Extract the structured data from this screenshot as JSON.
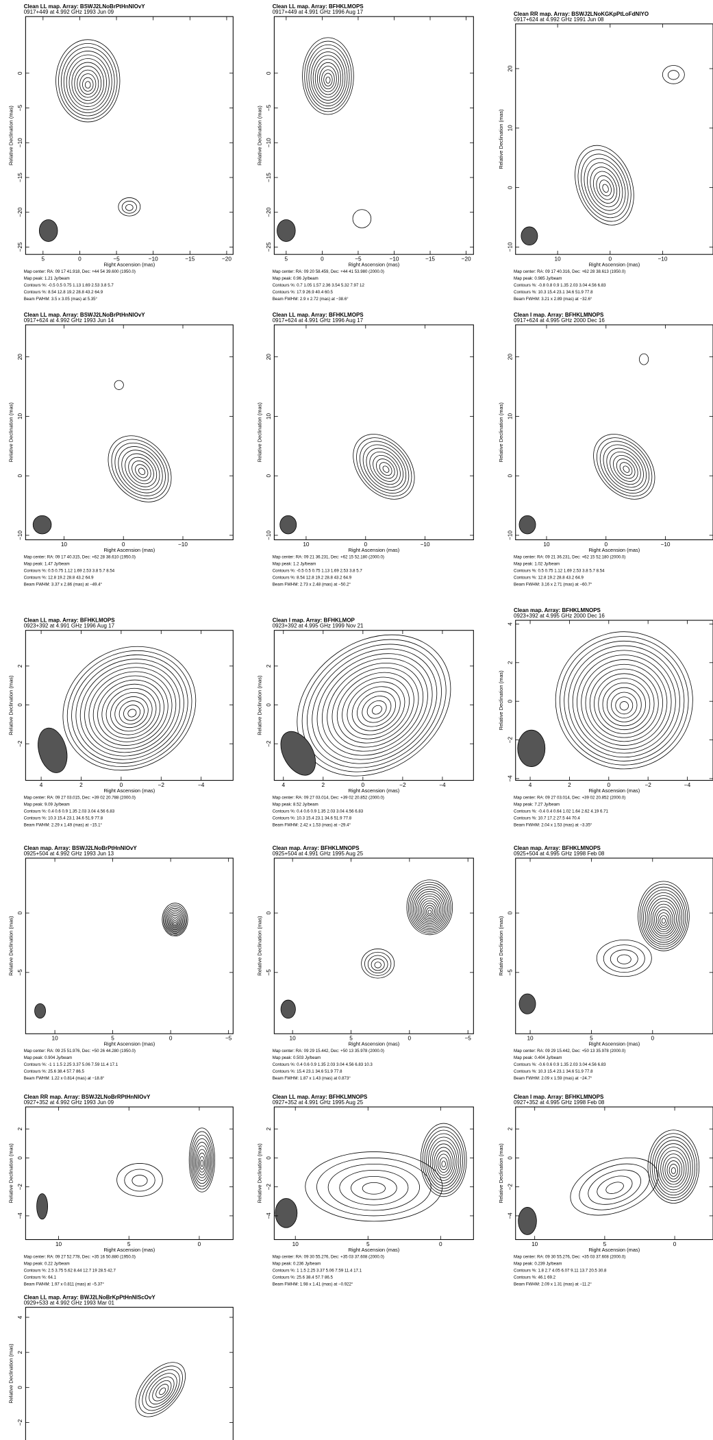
{
  "axis_labels": {
    "x": "Right Ascension  (mas)",
    "y": "Relative Declination  (mas)"
  },
  "panels": [
    {
      "title": "Clean LL map.  Array:  BSWJ2LNoBrPtHnNlOvY",
      "subtitle": "0917+449 at 4.992 GHz 1993 Jun 09",
      "xticks": [
        "5",
        "0",
        "−5",
        "−10",
        "−15",
        "−20"
      ],
      "yticks": [
        "0",
        "−5",
        "−10",
        "−15",
        "−20",
        "−25"
      ],
      "footer": [
        "Map center:  RA: 09 17 41.918,  Dec: +44 54 39.600 (1950.0)",
        "Map peak: 1.21 Jy/beam",
        "Contours %: -0.5 0.5 0.75 1.13 1.69 2.53 3.8 5.7",
        "Contours %: 8.54 12.8 19.2 28.8 43.2 64.9",
        "Beam FWHM: 3.5 x 3.05 (mas) at 5.35°"
      ]
    },
    {
      "title": "Clean LL map.  Array:  BFHKLMOPS",
      "subtitle": "0917+449 at 4.991 GHz 1996 Aug 17",
      "xticks": [
        "5",
        "0",
        "−5",
        "−10",
        "−15",
        "−20"
      ],
      "yticks": [
        "0",
        "−5",
        "−10",
        "−15",
        "−20",
        "−25"
      ],
      "footer": [
        "Map center:  RA: 09 20 58.459,  Dec: +44 41 53.980 (2000.0)",
        "Map peak: 0.96 Jy/beam",
        "Contours %: 0.7 1.05 1.57 2.36 3.54 5.32 7.97 12",
        "Contours %: 17.9 26.9 40.4 60.5",
        "Beam FWHM: 2.9 x 2.72 (mas) at −38.6°"
      ]
    },
    {
      "title": "Clean RR map.  Array:  BSWJ2LNoKGKpPtLoFdNlYO",
      "subtitle": "0917+624 at 4.992 GHz 1991 Jun 08",
      "xticks": [
        "10",
        "0",
        "−10"
      ],
      "yticks": [
        "20",
        "10",
        "0",
        "−10"
      ],
      "footer": [
        "Map center:  RA: 09 17 40.316,  Dec: +62 28 38.613 (1950.0)",
        "Map peak: 0.985 Jy/beam",
        "Contours %: -0.8 0.8 0.9 1.35 2.03 3.04 4.56 6.83",
        "Contours %: 10.3 15.4 23.1 34.6 51.9 77.8",
        "Beam FWHM: 3.21 x 2.89 (mas) at −32.6°"
      ]
    },
    {
      "title": "Clean LL map.  Array:  BSWJ2LNoBrPtHnNlOvY",
      "subtitle": "0917+624 at 4.992 GHz 1993 Jun 14",
      "xticks": [
        "10",
        "0",
        "−10"
      ],
      "yticks": [
        "20",
        "10",
        "0",
        "−10"
      ],
      "footer": [
        "Map center:  RA: 09 17 40.315,  Dec: +62 28 38.610 (1950.0)",
        "Map peak: 1.47 Jy/beam",
        "Contours %: 0.5 0.75 1.12 1.69 2.53 3.8 5.7 8.54",
        "Contours %: 12.8 19.2 28.8 43.2 64.9",
        "Beam FWHM: 3.37 x 2.86 (mas) at −49.4°"
      ]
    },
    {
      "title": "Clean LL map.  Array:  BFHKLMOPS",
      "subtitle": "0917+624 at 4.991 GHz 1996 Aug 17",
      "xticks": [
        "10",
        "0",
        "−10"
      ],
      "yticks": [
        "20",
        "10",
        "0",
        "−10"
      ],
      "footer": [
        "Map center:  RA: 09 21 36.231,  Dec: +62 15 52.180 (2000.0)",
        "Map peak: 1.2 Jy/beam",
        "Contours %: -0.5 0.5 0.75 1.13 1.69 2.53 3.8 5.7",
        "Contours %: 8.54 12.8 19.2 28.8 43.2 64.9",
        "Beam FWHM: 2.73 x 2.48 (mas) at −50.2°"
      ]
    },
    {
      "title": "Clean I map.  Array:  BFHKLMNOPS",
      "subtitle": "0917+624 at 4.995 GHz 2000 Dec 16",
      "xticks": [
        "10",
        "0",
        "−10"
      ],
      "yticks": [
        "20",
        "10",
        "0",
        "−10"
      ],
      "footer": [
        "Map center:  RA: 09 21 36.231,  Dec: +62 15 52.180 (2000.0)",
        "Map peak: 1.02 Jy/beam",
        "Contours %: 0.5 0.75 1.12 1.69 2.53 3.8 5.7 8.54",
        "Contours %: 12.8 19.2 28.8 43.2 64.9",
        "Beam FWHM: 3.16 x 2.71 (mas) at −60.7°"
      ]
    },
    {
      "title": "Clean LL map.  Array:  BFHKLMOPS",
      "subtitle": "0923+392 at 4.991 GHz 1996 Aug 17",
      "xticks": [
        "4",
        "2",
        "0",
        "−2",
        "−4"
      ],
      "yticks": [
        "2",
        "0",
        "−2"
      ],
      "footer": [
        "Map center:  RA: 09 27 03.015,  Dec: +39 02 20.788 (2000.0)",
        "Map peak: 9.09 Jy/beam",
        "Contours %: 0.4 0.6 0.9 1.35 2.03 3.04 4.56 6.83",
        "Contours %: 10.3 15.4 23.1 34.6 51.9 77.8",
        "Beam FWHM: 2.29 x 1.49 (mas) at −15.1°"
      ]
    },
    {
      "title": "Clean I map.  Array:  BFHKLMOP",
      "subtitle": "0923+392 at 4.995 GHz 1999 Nov 21",
      "xticks": [
        "4",
        "2",
        "0",
        "−2",
        "−4"
      ],
      "yticks": [
        "2",
        "0",
        "−2"
      ],
      "footer": [
        "Map center:  RA: 09 27 03.014,  Dec: +39 02 20.852 (2000.0)",
        "Map peak: 8.52 Jy/beam",
        "Contours %: 0.4 0.6 0.9 1.35 2.03 3.04 4.56 6.83",
        "Contours %: 10.3 15.4 23.1 34.6 51.9 77.8",
        "Beam FWHM: 2.42 x 1.53 (mas) at −29.4°"
      ]
    },
    {
      "title": "Clean map.  Array:  BFHKLMNOPS",
      "subtitle": "0923+392 at 4.995 GHz 2000 Dec 16",
      "xticks": [
        "4",
        "2",
        "0",
        "−2",
        "−4"
      ],
      "yticks": [
        "4",
        "2",
        "0",
        "−2",
        "−4"
      ],
      "footer": [
        "Map center:  RA: 09 27 03.014,  Dec: +39 02 20.852 (2000.0)",
        "Map peak: 7.27 Jy/beam",
        "Contours %: -0.4 0.4 0.64 1.02 1.64 2.62 4.19 6.71",
        "Contours %: 10.7 17.2 27.5 44 70.4",
        "Beam FWHM: 2.04 x 1.53 (mas) at −3.35°"
      ]
    },
    {
      "title": "Clean map.  Array:  BSWJ2LNoBrPtHnNlOvY",
      "subtitle": "0925+504 at 4.992 GHz 1993 Jun 13",
      "xticks": [
        "10",
        "5",
        "0",
        "−5"
      ],
      "yticks": [
        "0",
        "−5"
      ],
      "footer": [
        "Map center:  RA: 09 25 51.976,  Dec: +50 26 44.280 (1950.0)",
        "Map peak: 0.904 Jy/beam",
        "Contours %: -1 1 1.5 2.25 3.37 5.06 7.59 11.4 17.1",
        "Contours %: 25.6 38.4 57.7 86.5",
        "Beam FWHM: 1.22 x 0.814 (mas) at −18.8°"
      ]
    },
    {
      "title": "Clean map.  Array:  BFHKLMNOPS",
      "subtitle": "0925+504 at 4.991 GHz 1995 Aug 25",
      "xticks": [
        "10",
        "5",
        "0",
        "−5"
      ],
      "yticks": [
        "0",
        "−5"
      ],
      "footer": [
        "Map center:  RA: 09 29 15.442,  Dec: +50 13 35.978 (2000.0)",
        "Map peak: 0.503 Jy/beam",
        "Contours %: 0.4 0.6 0.9 1.35 2.03 3.04 4.56 6.83 10.3",
        "Contours %: 15.4 23.1 34.6 51.9 77.8",
        "Beam FWHM: 1.87 x 1.43 (mas) at 0.873°"
      ]
    },
    {
      "title": "Clean map.  Array:  BFHKLMNOPS",
      "subtitle": "0925+504 at 4.995 GHz 1998 Feb 08",
      "xticks": [
        "10",
        "5",
        "0"
      ],
      "yticks": [
        "0",
        "−5"
      ],
      "footer": [
        "Map center:  RA: 09 29 15.442,  Dec: +50 13 35.978 (2000.0)",
        "Map peak: 0.404 Jy/beam",
        "Contours %: -0.6 0.6 0.9 1.35 2.03 3.04 4.56 6.83",
        "Contours %: 10.3 15.4 23.1 34.6 51.9 77.8",
        "Beam FWHM: 2.09 x 1.59 (mas) at −24.7°"
      ]
    },
    {
      "title": "Clean RR map.  Array:  BSWJ2LNoBrRPtHnNlOvY",
      "subtitle": "0927+352 at 4.992 GHz 1993 Jun 09",
      "xticks": [
        "10",
        "5",
        "0"
      ],
      "yticks": [
        "2",
        "0",
        "−2",
        "−4"
      ],
      "footer": [
        "Map center:  RA: 09 27 52.778,  Dec: +35 16 50.880 (1950.0)",
        "Map peak: 0.22 Jy/beam",
        "Contours %: 2.5 3.75 5.62 8.44 12.7 19 28.5 42.7",
        "Contours %: 64.1",
        "Beam FWHM: 1.97 x 0.811 (mas) at −5.37°"
      ]
    },
    {
      "title": "Clean LL map.  Array:  BFHKLMNOPS",
      "subtitle": "0927+352 at 4.991 GHz 1995 Aug 25",
      "xticks": [
        "10",
        "5",
        "0"
      ],
      "yticks": [
        "2",
        "0",
        "−2",
        "−4"
      ],
      "footer": [
        "Map center:  RA: 09 30 55.276,  Dec: +35 03 37.608 (2000.0)",
        "Map peak: 0.236 Jy/beam",
        "Contours %: 1 1.5 2.25 3.37 5.06 7.59 11.4 17.1",
        "Contours %: 25.6 38.4 57.7 86.5",
        "Beam FWHM: 1.98 x 1.41 (mas) at −0.922°"
      ]
    },
    {
      "title": "Clean I map.  Array:  BFHKLMNOPS",
      "subtitle": "0927+352 at 4.995 GHz 1998 Feb 08",
      "xticks": [
        "10",
        "5",
        "0"
      ],
      "yticks": [
        "2",
        "0",
        "−2",
        "−4"
      ],
      "footer": [
        "Map center:  RA: 09 30 55.276,  Dec: +35 03 37.608 (2000.0)",
        "Map peak: 0.239 Jy/beam",
        "Contours %: 1.8 2.7 4.05 6.07 9.11 13.7 20.5 30.8",
        "Contours %: 46.1 69.2",
        "Beam FWHM: 2.09 x 1.31 (mas) at −11.2°"
      ]
    },
    {
      "title": "Clean LL map.  Array:  BWJ2LNoBrKpPtHnNlScOvY",
      "subtitle": "0929+533 at 4.992 GHz 1993 Mar 01",
      "xticks": [],
      "yticks": [
        "4",
        "2",
        "0",
        "−2"
      ],
      "footer": []
    }
  ]
}
